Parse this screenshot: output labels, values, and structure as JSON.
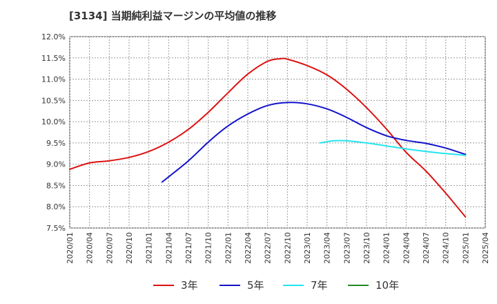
{
  "title": "[3134]  当期純利益マージンの平均値の推移",
  "chart_data": {
    "type": "line",
    "ylim": [
      7.5,
      12.0
    ],
    "y_ticks": [
      "12.0%",
      "11.5%",
      "11.0%",
      "10.5%",
      "10.0%",
      "9.5%",
      "9.0%",
      "8.5%",
      "8.0%",
      "7.5%"
    ],
    "y_tick_values": [
      12.0,
      11.5,
      11.0,
      10.5,
      10.0,
      9.5,
      9.0,
      8.5,
      8.0,
      7.5
    ],
    "x_ticks": [
      "2020/01",
      "2020/04",
      "2020/07",
      "2020/10",
      "2021/01",
      "2021/04",
      "2021/07",
      "2021/10",
      "2022/01",
      "2022/04",
      "2022/07",
      "2022/10",
      "2023/01",
      "2023/04",
      "2023/07",
      "2023/10",
      "2024/01",
      "2024/04",
      "2024/07",
      "2024/10",
      "2025/01",
      "2025/04"
    ],
    "grid": true,
    "legend_position": "bottom",
    "series": [
      {
        "name": "3年",
        "color": "#dd1111",
        "points": [
          [
            "2020/01",
            8.88
          ],
          [
            "2020/04",
            9.03
          ],
          [
            "2020/07",
            9.08
          ],
          [
            "2020/10",
            9.16
          ],
          [
            "2021/01",
            9.3
          ],
          [
            "2021/04",
            9.52
          ],
          [
            "2021/07",
            9.82
          ],
          [
            "2021/10",
            10.22
          ],
          [
            "2022/01",
            10.68
          ],
          [
            "2022/04",
            11.12
          ],
          [
            "2022/07",
            11.42
          ],
          [
            "2022/09",
            11.48
          ],
          [
            "2022/10",
            11.47
          ],
          [
            "2023/01",
            11.32
          ],
          [
            "2023/04",
            11.1
          ],
          [
            "2023/07",
            10.76
          ],
          [
            "2023/10",
            10.33
          ],
          [
            "2024/01",
            9.83
          ],
          [
            "2024/04",
            9.28
          ],
          [
            "2024/07",
            8.84
          ],
          [
            "2024/10",
            8.32
          ],
          [
            "2025/01",
            7.76
          ]
        ]
      },
      {
        "name": "5年",
        "color": "#1111cc",
        "points": [
          [
            "2021/03",
            8.58
          ],
          [
            "2021/07",
            9.08
          ],
          [
            "2021/10",
            9.52
          ],
          [
            "2022/01",
            9.9
          ],
          [
            "2022/04",
            10.18
          ],
          [
            "2022/07",
            10.38
          ],
          [
            "2022/10",
            10.45
          ],
          [
            "2023/01",
            10.42
          ],
          [
            "2023/04",
            10.3
          ],
          [
            "2023/07",
            10.1
          ],
          [
            "2023/10",
            9.86
          ],
          [
            "2024/01",
            9.67
          ],
          [
            "2024/04",
            9.56
          ],
          [
            "2024/07",
            9.49
          ],
          [
            "2024/10",
            9.38
          ],
          [
            "2025/01",
            9.23
          ]
        ]
      },
      {
        "name": "7年",
        "color": "#22e5ee",
        "points": [
          [
            "2023/03",
            9.5
          ],
          [
            "2023/05",
            9.55
          ],
          [
            "2023/07",
            9.55
          ],
          [
            "2023/10",
            9.5
          ],
          [
            "2024/01",
            9.43
          ],
          [
            "2024/04",
            9.36
          ],
          [
            "2024/07",
            9.3
          ],
          [
            "2024/10",
            9.25
          ],
          [
            "2025/01",
            9.21
          ]
        ]
      },
      {
        "name": "10年",
        "color": "#228b22",
        "points": []
      }
    ]
  }
}
